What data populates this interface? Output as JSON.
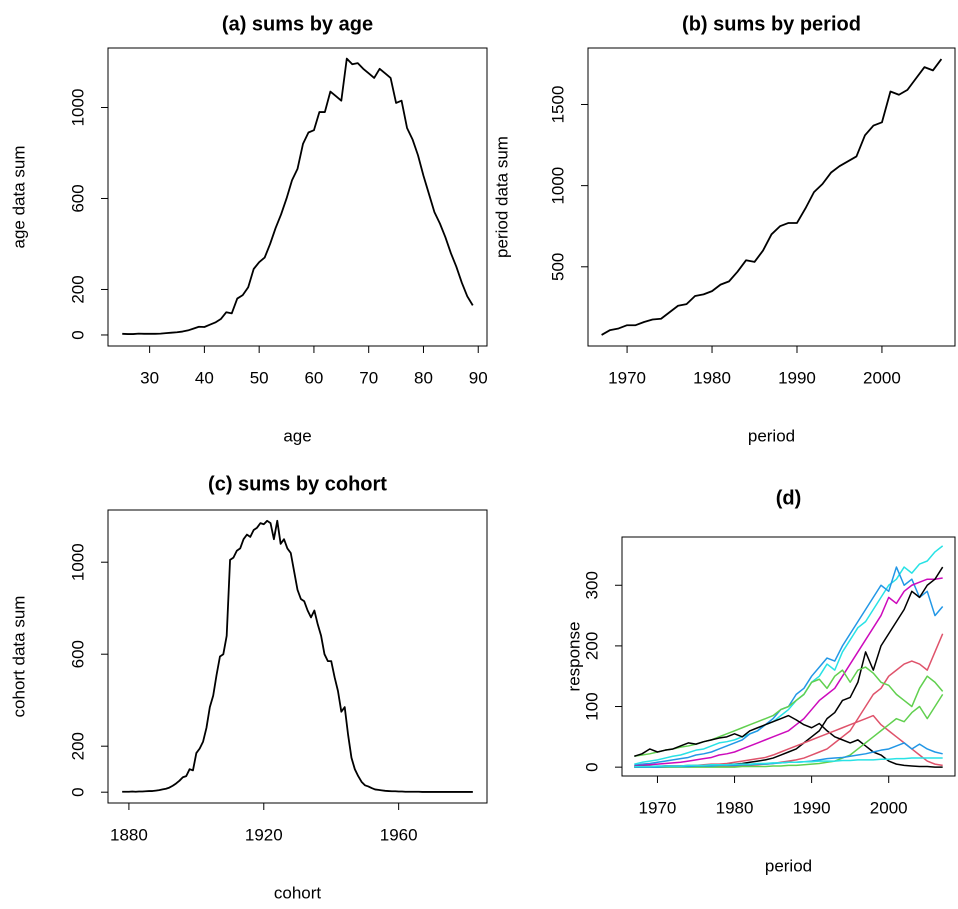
{
  "chart_data": [
    {
      "type": "line",
      "title": "(a) sums by age",
      "xlabel": "age",
      "ylabel": "age data sum",
      "color": "#000000",
      "x": [
        25,
        26,
        27,
        28,
        29,
        30,
        31,
        32,
        33,
        34,
        35,
        36,
        37,
        38,
        39,
        40,
        41,
        42,
        43,
        44,
        45,
        46,
        47,
        48,
        49,
        50,
        51,
        52,
        53,
        54,
        55,
        56,
        57,
        58,
        59,
        60,
        61,
        62,
        63,
        64,
        65,
        66,
        67,
        68,
        69,
        70,
        71,
        72,
        73,
        74,
        75,
        76,
        77,
        78,
        79,
        80,
        81,
        82,
        83,
        84,
        85,
        86,
        87,
        88,
        89
      ],
      "values": [
        5,
        4,
        4,
        6,
        5,
        5,
        5,
        6,
        8,
        10,
        12,
        15,
        20,
        28,
        36,
        35,
        45,
        55,
        70,
        100,
        95,
        160,
        175,
        210,
        290,
        320,
        340,
        400,
        470,
        530,
        600,
        680,
        730,
        840,
        890,
        900,
        980,
        980,
        1070,
        1050,
        1030,
        1215,
        1190,
        1195,
        1170,
        1150,
        1130,
        1170,
        1150,
        1130,
        1020,
        1030,
        910,
        860,
        790,
        700,
        620,
        540,
        490,
        430,
        360,
        300,
        230,
        170,
        130
      ],
      "xlim": [
        22.4,
        91.6
      ],
      "ylim": [
        -48.5,
        1261.5
      ],
      "xticks": [
        30,
        40,
        50,
        60,
        70,
        80,
        90
      ],
      "yticks": [
        0,
        200,
        600,
        1000
      ]
    },
    {
      "type": "line",
      "title": "(b) sums by period",
      "xlabel": "period",
      "ylabel": "period data sum",
      "color": "#000000",
      "x": [
        1967,
        1968,
        1969,
        1970,
        1971,
        1972,
        1973,
        1974,
        1975,
        1976,
        1977,
        1978,
        1979,
        1980,
        1981,
        1982,
        1983,
        1984,
        1985,
        1986,
        1987,
        1988,
        1989,
        1990,
        1991,
        1992,
        1993,
        1994,
        1995,
        1996,
        1997,
        1998,
        1999,
        2000,
        2001,
        2002,
        2003,
        2004,
        2005,
        2006,
        2007
      ],
      "values": [
        80,
        110,
        120,
        140,
        140,
        160,
        175,
        180,
        220,
        260,
        270,
        320,
        330,
        350,
        390,
        410,
        470,
        540,
        530,
        600,
        700,
        750,
        770,
        770,
        860,
        960,
        1010,
        1080,
        1120,
        1150,
        1180,
        1310,
        1370,
        1390,
        1580,
        1560,
        1590,
        1660,
        1730,
        1710,
        1780
      ],
      "xlim": [
        1965.4,
        2008.6
      ],
      "ylim": [
        12,
        1848
      ],
      "xticks": [
        1970,
        1980,
        1990,
        2000
      ],
      "yticks": [
        500,
        1000,
        1500
      ]
    },
    {
      "type": "line",
      "title": "(c) sums by cohort",
      "xlabel": "cohort",
      "ylabel": "cohort data sum",
      "color": "#000000",
      "x": [
        1878,
        1879,
        1880,
        1881,
        1882,
        1883,
        1884,
        1885,
        1886,
        1887,
        1888,
        1889,
        1890,
        1891,
        1892,
        1893,
        1894,
        1895,
        1896,
        1897,
        1898,
        1899,
        1900,
        1901,
        1902,
        1903,
        1904,
        1905,
        1906,
        1907,
        1908,
        1909,
        1910,
        1911,
        1912,
        1913,
        1914,
        1915,
        1916,
        1917,
        1918,
        1919,
        1920,
        1921,
        1922,
        1923,
        1924,
        1925,
        1926,
        1927,
        1928,
        1929,
        1930,
        1931,
        1932,
        1933,
        1934,
        1935,
        1936,
        1937,
        1938,
        1939,
        1940,
        1941,
        1942,
        1943,
        1944,
        1945,
        1946,
        1947,
        1948,
        1949,
        1950,
        1951,
        1952,
        1953,
        1954,
        1955,
        1956,
        1957,
        1958,
        1959,
        1960,
        1961,
        1962,
        1963,
        1964,
        1965,
        1966,
        1967,
        1968,
        1969,
        1970,
        1971,
        1972,
        1973,
        1974,
        1975,
        1976,
        1977,
        1978,
        1979,
        1980,
        1981,
        1982
      ],
      "values": [
        2,
        2,
        2,
        3,
        2,
        3,
        3,
        4,
        5,
        5,
        7,
        9,
        12,
        15,
        20,
        28,
        38,
        50,
        65,
        70,
        100,
        95,
        170,
        190,
        220,
        280,
        370,
        420,
        510,
        590,
        600,
        680,
        1010,
        1020,
        1050,
        1060,
        1100,
        1120,
        1110,
        1140,
        1150,
        1170,
        1165,
        1180,
        1170,
        1100,
        1180,
        1080,
        1100,
        1060,
        1040,
        960,
        880,
        840,
        830,
        790,
        760,
        790,
        730,
        680,
        600,
        570,
        570,
        500,
        440,
        350,
        370,
        250,
        150,
        100,
        70,
        45,
        30,
        25,
        18,
        12,
        10,
        8,
        6,
        5,
        4,
        4,
        3,
        3,
        2,
        2,
        2,
        2,
        2,
        1,
        1,
        1,
        1,
        1,
        1,
        1,
        1,
        1,
        1,
        1,
        1,
        1,
        1,
        1,
        1
      ],
      "xlim": [
        1873.8,
        1986.2
      ],
      "ylim": [
        -47,
        1227
      ],
      "xticks": [
        1880,
        1920,
        1960
      ],
      "yticks": [
        0,
        200,
        600,
        1000
      ]
    },
    {
      "type": "multiline",
      "title": "(d)",
      "xlabel": "period",
      "ylabel": "response",
      "x": [
        1967,
        1968,
        1969,
        1970,
        1971,
        1972,
        1973,
        1974,
        1975,
        1976,
        1977,
        1978,
        1979,
        1980,
        1981,
        1982,
        1983,
        1984,
        1985,
        1986,
        1987,
        1988,
        1989,
        1990,
        1991,
        1992,
        1993,
        1994,
        1995,
        1996,
        1997,
        1998,
        1999,
        2000,
        2001,
        2002,
        2003,
        2004,
        2005,
        2006,
        2007
      ],
      "series": [
        {
          "color": "#28E2E5",
          "values": [
            5,
            8,
            10,
            12,
            15,
            18,
            20,
            24,
            28,
            30,
            35,
            40,
            42,
            45,
            50,
            55,
            60,
            70,
            75,
            85,
            95,
            110,
            120,
            140,
            150,
            170,
            160,
            190,
            210,
            230,
            240,
            260,
            280,
            300,
            310,
            330,
            320,
            335,
            340,
            355,
            365
          ]
        },
        {
          "color": "#2297E6",
          "values": [
            3,
            5,
            6,
            8,
            10,
            12,
            14,
            16,
            20,
            22,
            25,
            30,
            35,
            40,
            45,
            55,
            60,
            70,
            80,
            95,
            100,
            120,
            130,
            150,
            165,
            180,
            175,
            200,
            220,
            240,
            260,
            280,
            300,
            290,
            330,
            300,
            310,
            280,
            290,
            250,
            265
          ]
        },
        {
          "color": "#CD0BBC",
          "values": [
            2,
            3,
            4,
            5,
            6,
            7,
            8,
            10,
            12,
            14,
            16,
            20,
            22,
            25,
            30,
            35,
            40,
            45,
            50,
            55,
            60,
            70,
            80,
            95,
            110,
            120,
            130,
            150,
            170,
            190,
            210,
            230,
            250,
            280,
            270,
            290,
            300,
            305,
            310,
            310,
            312
          ]
        },
        {
          "color": "#000000",
          "values": [
            1,
            1,
            1,
            1,
            2,
            2,
            2,
            2,
            3,
            3,
            4,
            4,
            5,
            5,
            6,
            8,
            10,
            12,
            15,
            20,
            25,
            30,
            40,
            50,
            60,
            80,
            90,
            110,
            115,
            140,
            190,
            160,
            200,
            220,
            240,
            260,
            290,
            280,
            300,
            310,
            330
          ]
        },
        {
          "color": "#DF536B",
          "values": [
            0,
            0,
            0,
            0,
            0,
            1,
            1,
            1,
            1,
            1,
            1,
            2,
            2,
            2,
            3,
            3,
            4,
            5,
            6,
            8,
            10,
            12,
            15,
            20,
            25,
            30,
            40,
            50,
            60,
            80,
            100,
            120,
            130,
            150,
            160,
            170,
            175,
            170,
            160,
            190,
            220
          ]
        },
        {
          "color": "#61D04F",
          "values": [
            18,
            20,
            22,
            25,
            28,
            30,
            33,
            35,
            38,
            42,
            45,
            50,
            55,
            60,
            65,
            70,
            75,
            80,
            85,
            95,
            100,
            110,
            120,
            140,
            145,
            130,
            150,
            160,
            140,
            160,
            165,
            155,
            140,
            135,
            120,
            110,
            100,
            130,
            150,
            140,
            125
          ]
        },
        {
          "color": "#000000",
          "values": [
            18,
            22,
            30,
            25,
            28,
            30,
            35,
            40,
            38,
            42,
            45,
            48,
            50,
            55,
            50,
            60,
            65,
            70,
            75,
            80,
            85,
            78,
            70,
            65,
            72,
            60,
            50,
            45,
            40,
            45,
            35,
            25,
            20,
            10,
            5,
            3,
            2,
            1,
            1,
            0,
            0
          ]
        },
        {
          "color": "#DF536B",
          "values": [
            0,
            0,
            1,
            1,
            1,
            2,
            2,
            3,
            3,
            4,
            5,
            5,
            6,
            8,
            10,
            12,
            14,
            16,
            20,
            25,
            30,
            35,
            40,
            45,
            50,
            55,
            60,
            65,
            70,
            75,
            80,
            85,
            70,
            60,
            50,
            40,
            30,
            20,
            10,
            5,
            3
          ]
        },
        {
          "color": "#61D04F",
          "values": [
            0,
            0,
            0,
            0,
            0,
            0,
            0,
            0,
            0,
            0,
            0,
            0,
            0,
            0,
            1,
            1,
            1,
            1,
            2,
            2,
            3,
            3,
            4,
            5,
            6,
            8,
            10,
            15,
            20,
            30,
            40,
            50,
            60,
            70,
            80,
            75,
            90,
            100,
            80,
            100,
            120
          ]
        },
        {
          "color": "#2297E6",
          "values": [
            0,
            0,
            0,
            0,
            1,
            1,
            1,
            1,
            2,
            2,
            2,
            3,
            3,
            3,
            4,
            4,
            5,
            5,
            6,
            7,
            8,
            8,
            9,
            10,
            12,
            14,
            15,
            16,
            18,
            20,
            22,
            25,
            28,
            30,
            35,
            40,
            30,
            38,
            30,
            25,
            22
          ]
        },
        {
          "color": "#28E2E5",
          "values": [
            1,
            1,
            1,
            2,
            2,
            2,
            2,
            3,
            3,
            3,
            4,
            4,
            4,
            5,
            5,
            5,
            6,
            6,
            7,
            7,
            8,
            8,
            9,
            9,
            10,
            10,
            10,
            11,
            11,
            12,
            12,
            12,
            13,
            13,
            14,
            14,
            15,
            15,
            15,
            15,
            15
          ]
        }
      ],
      "xlim": [
        1965.4,
        2008.6
      ],
      "ylim": [
        -14.6,
        379.6
      ],
      "xticks": [
        1970,
        1980,
        1990,
        2000
      ],
      "yticks": [
        0,
        100,
        200,
        300
      ]
    }
  ]
}
